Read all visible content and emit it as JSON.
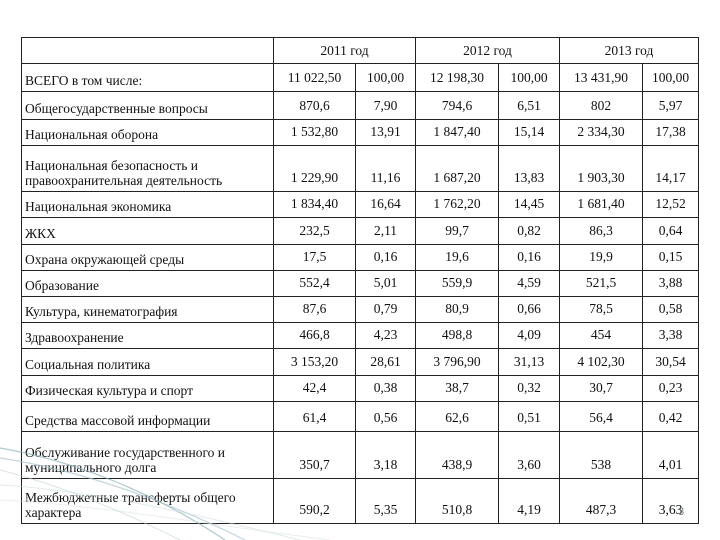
{
  "table": {
    "years": [
      "2011 год",
      "2012 год",
      "2013 год"
    ],
    "rows": [
      {
        "category": "ВСЕГО в том числе:",
        "values": [
          "11 022,50",
          "100,00",
          "12 198,30",
          "100,00",
          "13 431,90",
          "100,00"
        ]
      },
      {
        "category": "Общегосударственные вопросы",
        "values": [
          "870,6",
          "7,90",
          "794,6",
          "6,51",
          "802",
          "5,97"
        ]
      },
      {
        "category": "Национальная оборона",
        "values": [
          "1 532,80",
          "13,91",
          "1 847,40",
          "15,14",
          "2 334,30",
          "17,38"
        ]
      },
      {
        "category": "Национальная безопасность и правоохранительная деятельность",
        "values": [
          "1 229,90",
          "11,16",
          "1 687,20",
          "13,83",
          "1 903,30",
          "14,17"
        ]
      },
      {
        "category": "Национальная экономика",
        "values": [
          "1 834,40",
          "16,64",
          "1 762,20",
          "14,45",
          "1 681,40",
          "12,52"
        ]
      },
      {
        "category": "ЖКХ",
        "values": [
          "232,5",
          "2,11",
          "99,7",
          "0,82",
          "86,3",
          "0,64"
        ]
      },
      {
        "category": "Охрана окружающей среды",
        "values": [
          "17,5",
          "0,16",
          "19,6",
          "0,16",
          "19,9",
          "0,15"
        ]
      },
      {
        "category": "Образование",
        "values": [
          "552,4",
          "5,01",
          "559,9",
          "4,59",
          "521,5",
          "3,88"
        ]
      },
      {
        "category": "Культура,  кинематография",
        "values": [
          "87,6",
          "0,79",
          "80,9",
          "0,66",
          "78,5",
          "0,58"
        ]
      },
      {
        "category": "Здравоохранение",
        "values": [
          "466,8",
          "4,23",
          "498,8",
          "4,09",
          "454",
          "3,38"
        ]
      },
      {
        "category": "Социальная политика",
        "values": [
          "3 153,20",
          "28,61",
          "3 796,90",
          "31,13",
          "4 102,30",
          "30,54"
        ]
      },
      {
        "category": "Физическая культура и спорт",
        "values": [
          "42,4",
          "0,38",
          "38,7",
          "0,32",
          "30,7",
          "0,23"
        ]
      },
      {
        "category": "Средства массовой информации",
        "values": [
          "61,4",
          "0,56",
          "62,6",
          "0,51",
          "56,4",
          "0,42"
        ]
      },
      {
        "category": "Обслуживание государственного и муниципального долга",
        "values": [
          "350,7",
          "3,18",
          "438,9",
          "3,60",
          "538",
          "4,01"
        ]
      },
      {
        "category": "Межбюджетные трансферты общего характера",
        "values": [
          "590,2",
          "5,35",
          "510,8",
          "4,19",
          "487,3",
          "3,63"
        ]
      }
    ]
  },
  "slide_number": "3",
  "colors": {
    "wave": "#8fb1bb",
    "text": "#111111",
    "border": "#222222"
  }
}
